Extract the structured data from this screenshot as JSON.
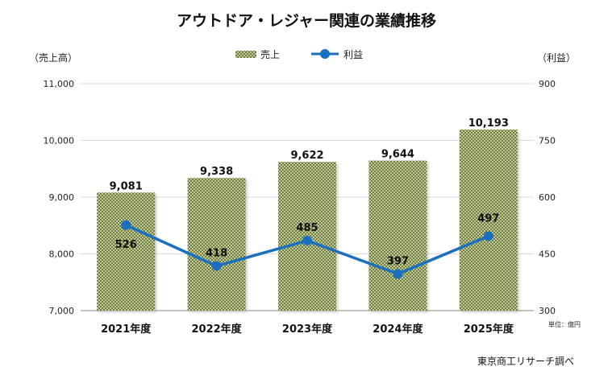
{
  "chart_data": {
    "type": "bar",
    "title": "アウトドア・レジャー関連の業績推移",
    "categories": [
      "2021年度",
      "2022年度",
      "2023年度",
      "2024年度",
      "2025年度"
    ],
    "series": [
      {
        "name": "売上",
        "type": "bar",
        "axis": "left",
        "values": [
          9081,
          9338,
          9622,
          9644,
          10193
        ],
        "labels": [
          "9,081",
          "9,338",
          "9,622",
          "9,644",
          "10,193"
        ],
        "color": "#9aa864"
      },
      {
        "name": "利益",
        "type": "line",
        "axis": "right",
        "values": [
          526,
          418,
          485,
          397,
          497
        ],
        "labels": [
          "526",
          "418",
          "485",
          "397",
          "497"
        ],
        "color": "#1a6fbf"
      }
    ],
    "ylabel": "（売上高）",
    "y2label": "（利益）",
    "ylim": [
      7000,
      11000
    ],
    "y2lim": [
      300,
      900
    ],
    "yticks": [
      "7,000",
      "8,000",
      "9,000",
      "10,000",
      "11,000"
    ],
    "y2ticks": [
      "300",
      "450",
      "600",
      "750",
      "900"
    ],
    "grid": true,
    "legend": "top-center",
    "unit_note": "単位：億円",
    "source": "東京商工リサーチ調べ"
  }
}
